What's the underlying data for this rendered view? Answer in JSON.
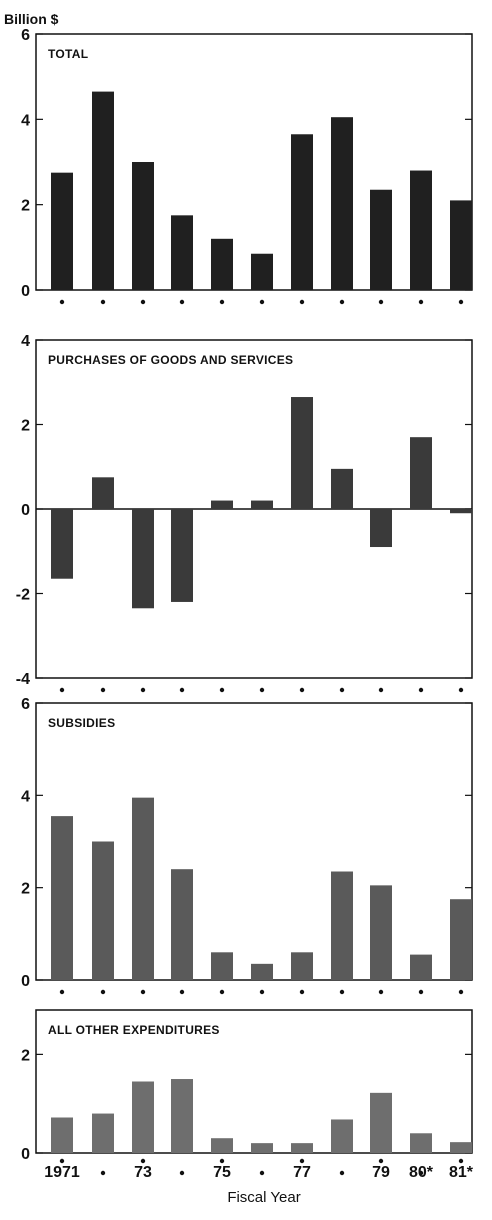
{
  "unit_label": "Billion $",
  "x_axis_title": "Fiscal Year",
  "x_tick_labels": [
    "1971",
    "",
    "73",
    "",
    "75",
    "",
    "77",
    "",
    "79",
    "80*",
    "81*"
  ],
  "chart_data": [
    {
      "type": "bar",
      "title": "TOTAL",
      "ylim": [
        0,
        6
      ],
      "yticks": [
        0,
        2,
        4,
        6
      ],
      "bar_color": "#202020",
      "values": [
        2.75,
        4.65,
        3.0,
        1.75,
        1.2,
        0.85,
        3.65,
        4.05,
        2.35,
        2.8,
        2.1
      ]
    },
    {
      "type": "bar",
      "title": "PURCHASES OF GOODS AND SERVICES",
      "ylim": [
        -4,
        4
      ],
      "yticks": [
        -4,
        -2,
        0,
        2,
        4
      ],
      "bar_color": "#3a3a3a",
      "values": [
        -1.65,
        0.75,
        -2.35,
        -2.2,
        0.2,
        0.2,
        2.65,
        0.95,
        -0.9,
        1.7,
        -0.1
      ]
    },
    {
      "type": "bar",
      "title": "SUBSIDIES",
      "ylim": [
        0,
        6
      ],
      "yticks": [
        0,
        2,
        4,
        6
      ],
      "bar_color": "#5a5a5a",
      "values": [
        3.55,
        3.0,
        3.95,
        2.4,
        0.6,
        0.35,
        0.6,
        2.35,
        2.05,
        0.55,
        1.75
      ]
    },
    {
      "type": "bar",
      "title": "ALL OTHER EXPENDITURES",
      "ylim": [
        0,
        2.9
      ],
      "yticks": [
        0,
        2
      ],
      "bar_color": "#6e6e6e",
      "values": [
        0.72,
        0.8,
        1.45,
        1.5,
        0.3,
        0.2,
        0.2,
        0.68,
        1.22,
        0.4,
        0.22
      ]
    }
  ]
}
